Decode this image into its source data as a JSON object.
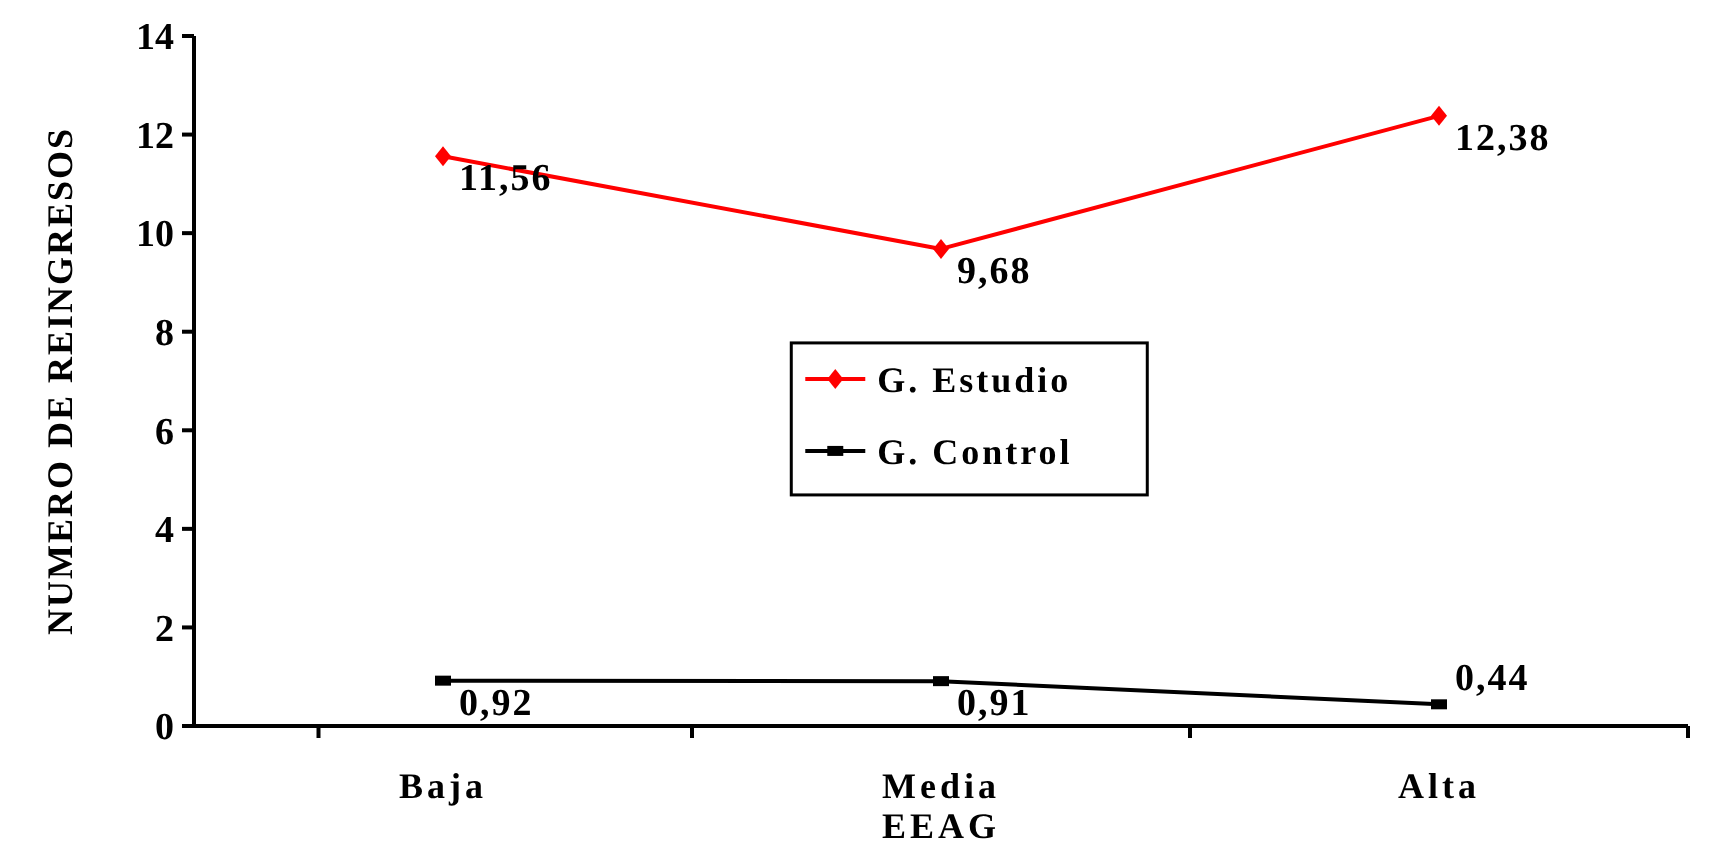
{
  "chart_data": {
    "type": "line",
    "xlabel": "EEAG",
    "ylabel": "NUMERO DE REINGRESOS",
    "categories": [
      "Baja",
      "Media",
      "Alta"
    ],
    "series": [
      {
        "name": "G. Estudio",
        "color": "#ff0000",
        "marker": "diamond",
        "values": [
          11.56,
          9.68,
          12.38
        ],
        "value_labels": [
          "11,56",
          "9,68",
          "12,38"
        ]
      },
      {
        "name": "G. Control",
        "color": "#000000",
        "marker": "square",
        "values": [
          0.92,
          0.91,
          0.44
        ],
        "value_labels": [
          "0,92",
          "0,91",
          "0,44"
        ]
      }
    ],
    "ylim": [
      0,
      14
    ],
    "yticks": [
      0,
      2,
      4,
      6,
      8,
      10,
      12,
      14
    ],
    "grid": false,
    "legend": "center"
  }
}
